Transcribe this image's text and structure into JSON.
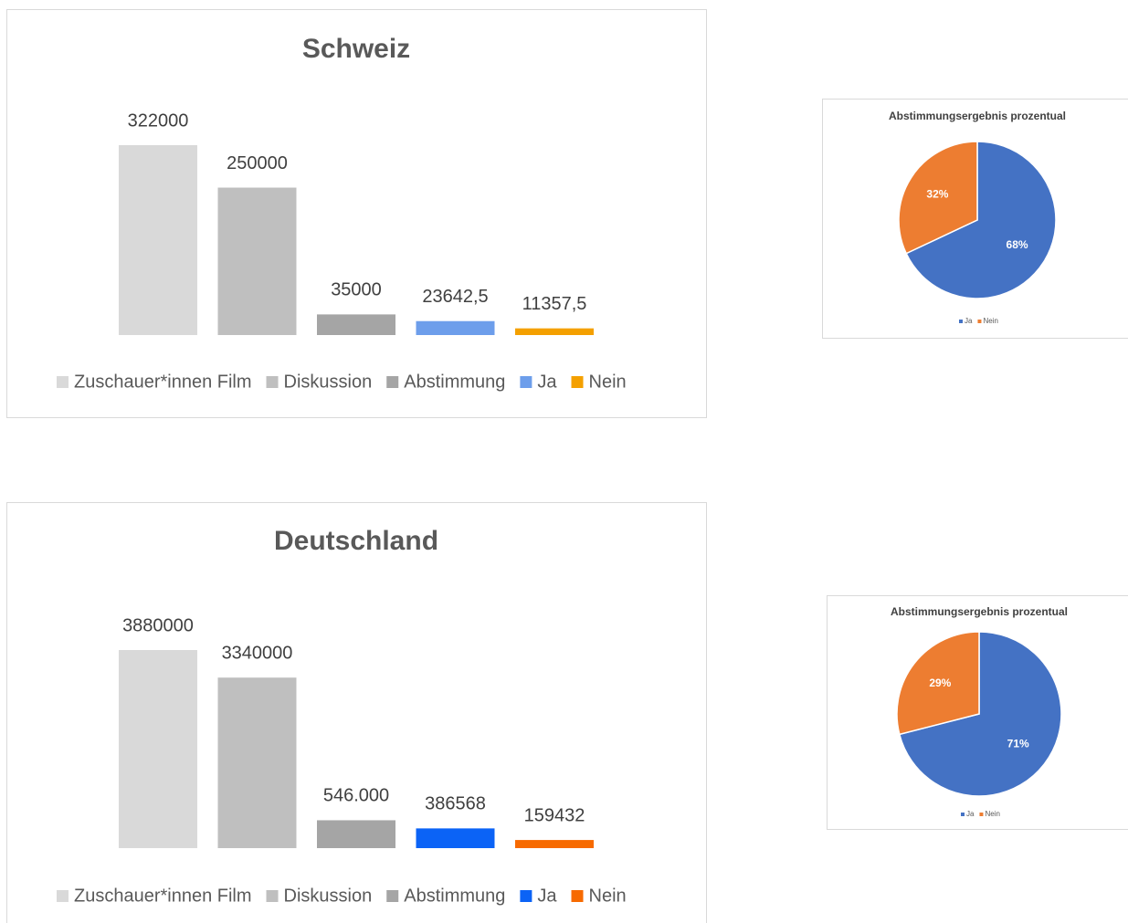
{
  "chart_data": [
    {
      "type": "bar",
      "title": "Schweiz",
      "series": [
        {
          "name": "Zuschauer*innen Film",
          "color": "#d9d9d9",
          "values": [
            322000
          ],
          "value_labels": [
            "322000"
          ]
        },
        {
          "name": "Diskussion",
          "color": "#bfbfbf",
          "values": [
            250000
          ],
          "value_labels": [
            "250000"
          ]
        },
        {
          "name": "Abstimmung",
          "color": "#a5a5a5",
          "values": [
            35000
          ],
          "value_labels": [
            "35000"
          ]
        },
        {
          "name": "Ja",
          "color": "#6d9eeb",
          "values": [
            23642.5
          ],
          "value_labels": [
            "23642,5"
          ]
        },
        {
          "name": "Nein",
          "color": "#f4a000",
          "values": [
            11357.5
          ],
          "value_labels": [
            "11357,5"
          ]
        }
      ]
    },
    {
      "type": "pie",
      "title": "Abstimmungsergebnis prozentual",
      "categories": [
        "Ja",
        "Nein"
      ],
      "values": [
        68,
        32
      ],
      "value_labels": [
        "68%",
        "32%"
      ],
      "colors": [
        "#4472c4",
        "#ed7d31"
      ]
    },
    {
      "type": "bar",
      "title": "Deutschland",
      "series": [
        {
          "name": "Zuschauer*innen Film",
          "color": "#d9d9d9",
          "values": [
            3880000
          ],
          "value_labels": [
            "3880000"
          ]
        },
        {
          "name": "Diskussion",
          "color": "#bfbfbf",
          "values": [
            3340000
          ],
          "value_labels": [
            "3340000"
          ]
        },
        {
          "name": "Abstimmung",
          "color": "#a5a5a5",
          "values": [
            546000
          ],
          "value_labels": [
            "546.000"
          ]
        },
        {
          "name": "Ja",
          "color": "#0b63f6",
          "values": [
            386568
          ],
          "value_labels": [
            "386568"
          ]
        },
        {
          "name": "Nein",
          "color": "#f76a00",
          "values": [
            159432
          ],
          "value_labels": [
            "159432"
          ]
        }
      ]
    },
    {
      "type": "pie",
      "title": "Abstimmungsergebnis prozentual",
      "categories": [
        "Ja",
        "Nein"
      ],
      "values": [
        71,
        29
      ],
      "value_labels": [
        "71%",
        "29%"
      ],
      "colors": [
        "#4472c4",
        "#ed7d31"
      ]
    }
  ]
}
